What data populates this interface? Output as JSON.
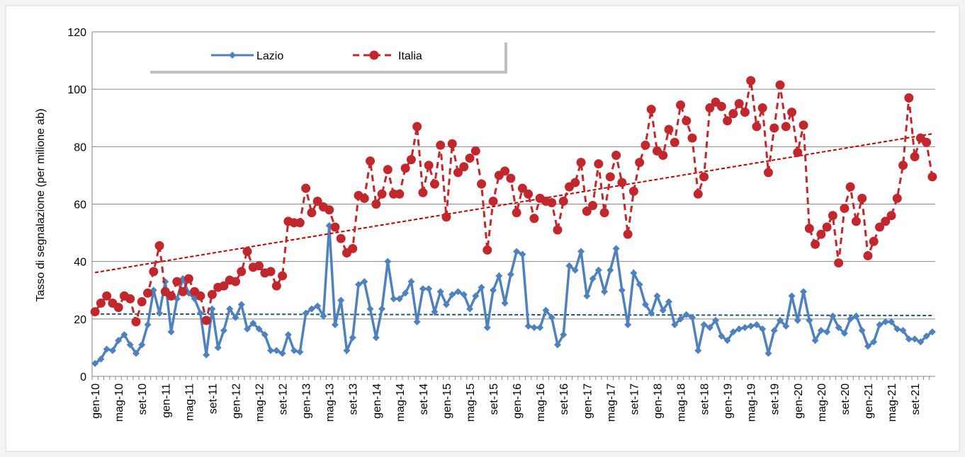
{
  "chart_data": {
    "type": "line",
    "y_label": "Tasso di segnalazione (per milione ab)",
    "ylim": [
      0,
      120
    ],
    "yticks": [
      0,
      20,
      40,
      60,
      80,
      100,
      120
    ],
    "grid": true,
    "trendlines": true,
    "legend": "top-left",
    "categories": [
      "gen-10",
      null,
      null,
      null,
      "mag-10",
      null,
      null,
      null,
      "set-10",
      null,
      null,
      null,
      "gen-11",
      null,
      null,
      null,
      "mag-11",
      null,
      null,
      null,
      "set-11",
      null,
      null,
      null,
      "gen-12",
      null,
      null,
      null,
      "mag-12",
      null,
      null,
      null,
      "set-12",
      null,
      null,
      null,
      "gen-13",
      null,
      null,
      null,
      "mag-13",
      null,
      null,
      null,
      "set-13",
      null,
      null,
      null,
      "gen-14",
      null,
      null,
      null,
      "mag-14",
      null,
      null,
      null,
      "set-14",
      null,
      null,
      null,
      "gen-15",
      null,
      null,
      null,
      "mag-15",
      null,
      null,
      null,
      "set-15",
      null,
      null,
      null,
      "gen-16",
      null,
      null,
      null,
      "mag-16",
      null,
      null,
      null,
      "set-16",
      null,
      null,
      null,
      "gen-17",
      null,
      null,
      null,
      "mag-17",
      null,
      null,
      null,
      "set-17",
      null,
      null,
      null,
      "gen-18",
      null,
      null,
      null,
      "mag-18",
      null,
      null,
      null,
      "set-18",
      null,
      null,
      null,
      "gen-19",
      null,
      null,
      null,
      "mag-19",
      null,
      null,
      null,
      "set-19",
      null,
      null,
      null,
      "gen-20",
      null,
      null,
      null,
      "mag-20",
      null,
      null,
      null,
      "set-20",
      null,
      null,
      null,
      "gen-21",
      null,
      null,
      null,
      "mag-21",
      null,
      null,
      null,
      "set-21",
      null,
      null,
      null
    ],
    "series": [
      {
        "name": "Lazio",
        "color": "#4f81bd",
        "trend_color": "#1f5c6b",
        "marker": "diamond",
        "dashed": false,
        "values": [
          4.5,
          6,
          9.5,
          9,
          12.5,
          14.5,
          11,
          8,
          11,
          18,
          30,
          22,
          33,
          15.5,
          27,
          34,
          29,
          27,
          22,
          7.5,
          23.5,
          10,
          16,
          23.5,
          20.5,
          25,
          16.5,
          18.5,
          16.5,
          14.5,
          9,
          9,
          8,
          14.5,
          9,
          8.5,
          22,
          23.5,
          24.5,
          21,
          52.5,
          18,
          26.5,
          9,
          13.5,
          32,
          33,
          23.5,
          13.5,
          23.5,
          40,
          27,
          27,
          29,
          33,
          19,
          30.5,
          30.5,
          22.5,
          29.5,
          25,
          28.5,
          29.5,
          28.5,
          23.5,
          28,
          31,
          17,
          30,
          35,
          25.5,
          35.5,
          43.5,
          42.5,
          17.5,
          17,
          17,
          23,
          20.5,
          11,
          14.5,
          38.5,
          37,
          43.5,
          28,
          34,
          37,
          29.5,
          37,
          44.5,
          30,
          18,
          36,
          32,
          25,
          22,
          28,
          23,
          26,
          18,
          20,
          21.5,
          20.5,
          9,
          18,
          17,
          19.5,
          14,
          12.5,
          15.5,
          16.5,
          17,
          17.5,
          18,
          16.5,
          8,
          16,
          19.5,
          17.5,
          28,
          19.5,
          29.5,
          19.5,
          12.5,
          16,
          15.5,
          21,
          17,
          15,
          20,
          21,
          16,
          10.5,
          12,
          18,
          19,
          19,
          16.5,
          16,
          13,
          13,
          12,
          14,
          15.5
        ]
      },
      {
        "name": "Italia",
        "color": "#c0282d",
        "trend_color": "#c00000",
        "marker": "circle",
        "dashed": true,
        "values": [
          22.5,
          25.5,
          28,
          25.5,
          24,
          28,
          27,
          19,
          26,
          29,
          36.5,
          45.5,
          29.5,
          28,
          33,
          29.5,
          34,
          29.5,
          28,
          19.5,
          28.5,
          31,
          31.5,
          33.5,
          33,
          36.5,
          43.5,
          38,
          38.5,
          36,
          36.5,
          31.5,
          35,
          54,
          53.5,
          53.5,
          65.5,
          57,
          61,
          59,
          58,
          52,
          48,
          43,
          44.5,
          63,
          62,
          75,
          60,
          63.5,
          72,
          63.5,
          63.5,
          72.5,
          75.5,
          87,
          64,
          73.5,
          67,
          80.5,
          55.5,
          81,
          71,
          73,
          76,
          78.5,
          67,
          44,
          61,
          70,
          71.5,
          69,
          57,
          65.5,
          63.5,
          55,
          62,
          61,
          60.5,
          51,
          61,
          66,
          67.5,
          74.5,
          57.5,
          59.5,
          74,
          57,
          69.5,
          77,
          67.5,
          49.5,
          64.5,
          74.5,
          80.5,
          93,
          78.5,
          77,
          86,
          81.5,
          94.5,
          89,
          83,
          63.5,
          69.5,
          93.5,
          95.5,
          94,
          89,
          91.5,
          95,
          92,
          103,
          87,
          93.5,
          71,
          86.5,
          101.5,
          87,
          92,
          78,
          87.5,
          51.5,
          46,
          49.5,
          52,
          56,
          39.5,
          58.5,
          66,
          54,
          62,
          42,
          47,
          52,
          54,
          56,
          62,
          73.5,
          97,
          76.5,
          83,
          81.5,
          69.5
        ]
      }
    ]
  }
}
